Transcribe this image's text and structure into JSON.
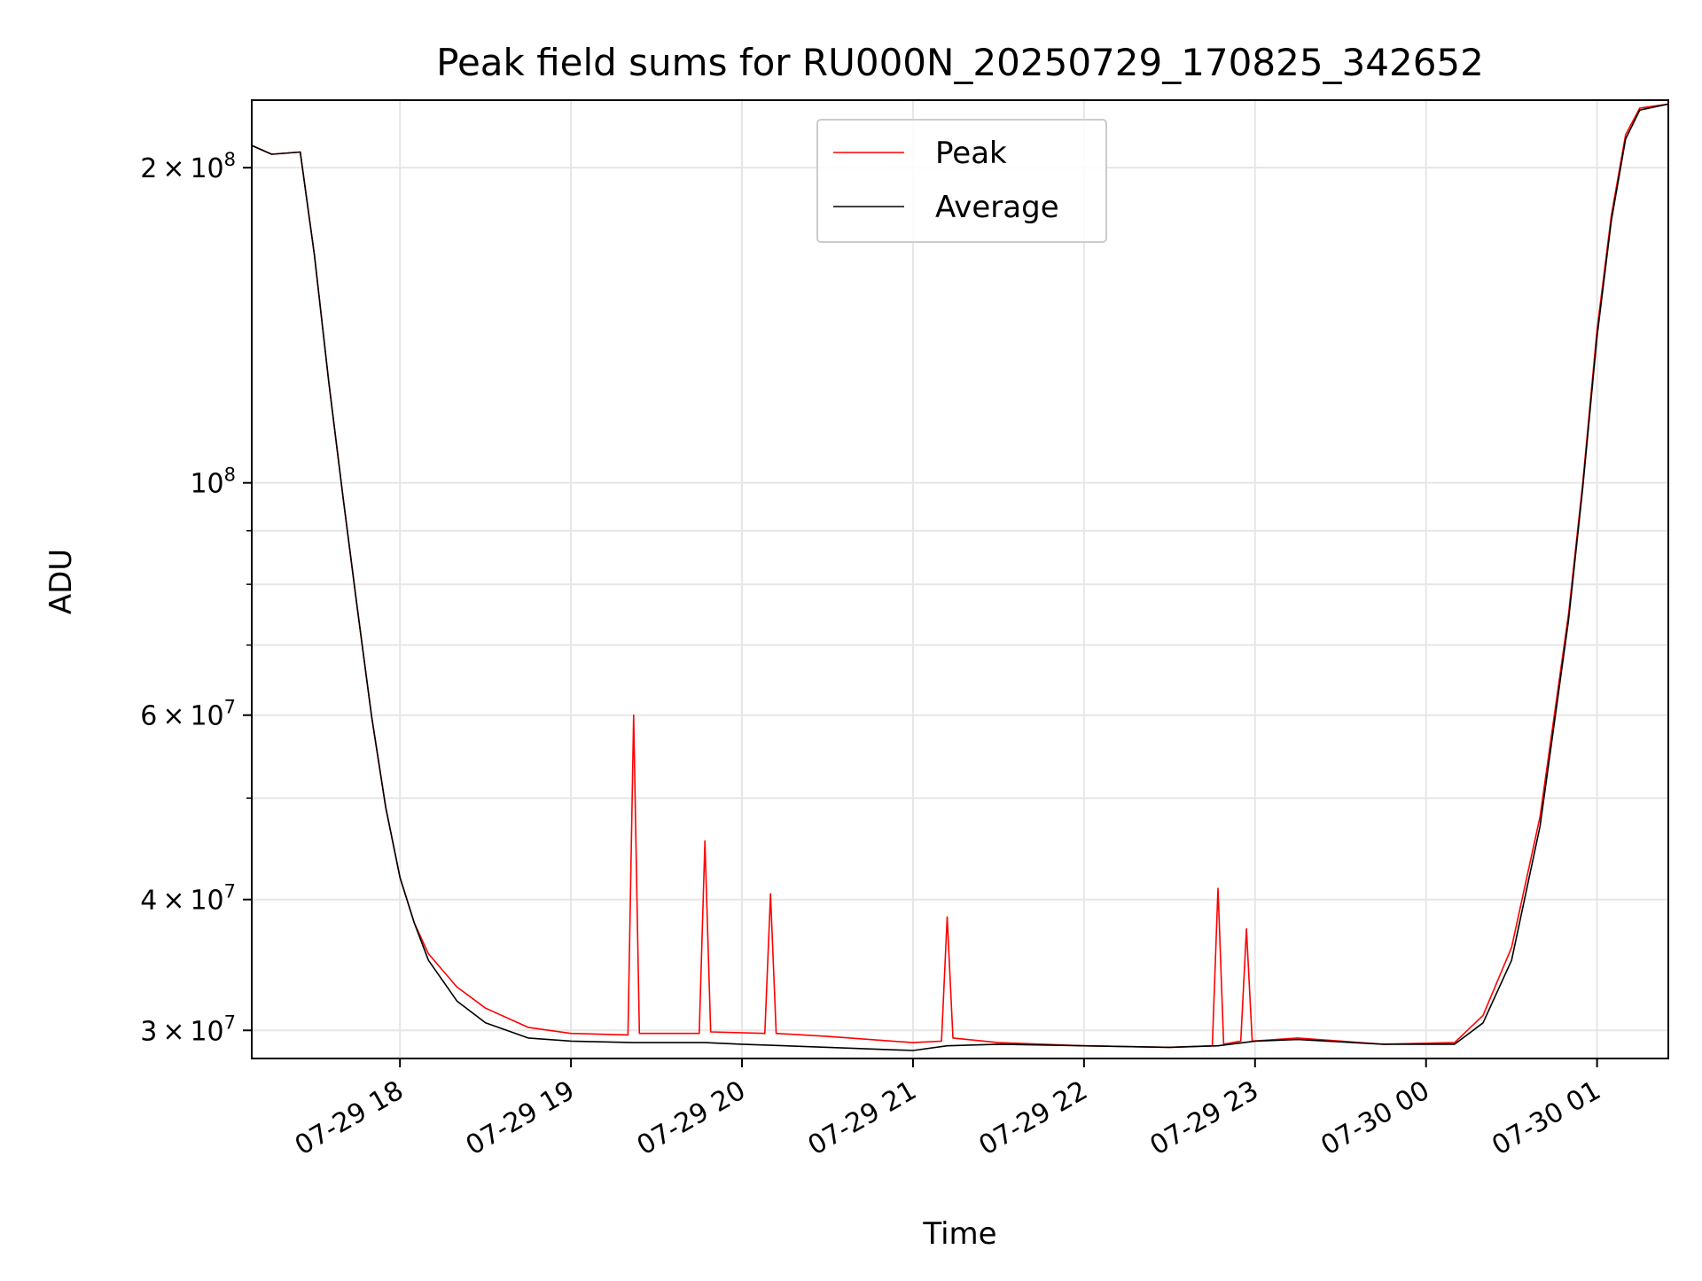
{
  "chart_data": {
    "type": "line",
    "title": "Peak field sums for RU000N_20250729_170825_342652",
    "xlabel": "Time",
    "ylabel": "ADU",
    "yscale": "log",
    "grid": true,
    "legend_position": "upper center",
    "xlim": [
      "2025-07-29 17:08",
      "2025-07-30 01:25"
    ],
    "ylim": [
      28200000,
      232000000
    ],
    "x_ticks": [
      "07-29 18",
      "07-29 19",
      "07-29 20",
      "07-29 21",
      "07-29 22",
      "07-29 23",
      "07-30 00",
      "07-30 01"
    ],
    "y_ticks_major": [
      {
        "value": 30000000,
        "label": "3 × 10^7",
        "mant": "3",
        "exp": "7"
      },
      {
        "value": 40000000,
        "label": "4 × 10^7",
        "mant": "4",
        "exp": "7"
      },
      {
        "value": 60000000,
        "label": "6 × 10^7",
        "mant": "6",
        "exp": "7"
      },
      {
        "value": 100000000,
        "label": "10^8",
        "mant": "",
        "exp": "8"
      },
      {
        "value": 200000000,
        "label": "2 × 10^8",
        "mant": "2",
        "exp": "8"
      }
    ],
    "y_ticks_minor": [
      50000000,
      70000000,
      80000000,
      90000000
    ],
    "series": [
      {
        "name": "Peak",
        "color": "#ff0000",
        "x": [
          "2025-07-29 17:08",
          "2025-07-29 17:15",
          "2025-07-29 17:25",
          "2025-07-29 17:30",
          "2025-07-29 17:35",
          "2025-07-29 17:40",
          "2025-07-29 17:45",
          "2025-07-29 17:50",
          "2025-07-29 17:55",
          "2025-07-29 18:00",
          "2025-07-29 18:05",
          "2025-07-29 18:10",
          "2025-07-29 18:20",
          "2025-07-29 18:30",
          "2025-07-29 18:45",
          "2025-07-29 19:00",
          "2025-07-29 19:20",
          "2025-07-29 19:22",
          "2025-07-29 19:24",
          "2025-07-29 19:45",
          "2025-07-29 19:47",
          "2025-07-29 19:49",
          "2025-07-29 20:08",
          "2025-07-29 20:10",
          "2025-07-29 20:12",
          "2025-07-29 20:30",
          "2025-07-29 21:00",
          "2025-07-29 21:10",
          "2025-07-29 21:12",
          "2025-07-29 21:14",
          "2025-07-29 21:30",
          "2025-07-29 22:00",
          "2025-07-29 22:30",
          "2025-07-29 22:45",
          "2025-07-29 22:47",
          "2025-07-29 22:49",
          "2025-07-29 22:55",
          "2025-07-29 22:57",
          "2025-07-29 22:59",
          "2025-07-29 23:15",
          "2025-07-29 23:45",
          "2025-07-30 00:10",
          "2025-07-30 00:20",
          "2025-07-30 00:30",
          "2025-07-30 00:40",
          "2025-07-30 00:50",
          "2025-07-30 00:55",
          "2025-07-30 01:00",
          "2025-07-30 01:05",
          "2025-07-30 01:10",
          "2025-07-30 01:15",
          "2025-07-30 01:25"
        ],
        "y": [
          210000000,
          206000000,
          207000000,
          165000000,
          125000000,
          97000000,
          76000000,
          60000000,
          49000000,
          42000000,
          38000000,
          35500000,
          33000000,
          31500000,
          30200000,
          29800000,
          29700000,
          60000000,
          29800000,
          29800000,
          45500000,
          29900000,
          29800000,
          40500000,
          29800000,
          29600000,
          29200000,
          29300000,
          38500000,
          29500000,
          29200000,
          29000000,
          28900000,
          29000000,
          41000000,
          29100000,
          29300000,
          37500000,
          29300000,
          29500000,
          29100000,
          29200000,
          31000000,
          36000000,
          48000000,
          75000000,
          100000000,
          140000000,
          180000000,
          215000000,
          228000000,
          230000000
        ]
      },
      {
        "name": "Average",
        "color": "#000000",
        "x": [
          "2025-07-29 17:08",
          "2025-07-29 17:15",
          "2025-07-29 17:25",
          "2025-07-29 17:30",
          "2025-07-29 17:35",
          "2025-07-29 17:40",
          "2025-07-29 17:45",
          "2025-07-29 17:50",
          "2025-07-29 17:55",
          "2025-07-29 18:00",
          "2025-07-29 18:05",
          "2025-07-29 18:10",
          "2025-07-29 18:20",
          "2025-07-29 18:30",
          "2025-07-29 18:45",
          "2025-07-29 19:00",
          "2025-07-29 19:22",
          "2025-07-29 19:47",
          "2025-07-29 20:00",
          "2025-07-29 20:30",
          "2025-07-29 21:00",
          "2025-07-29 21:12",
          "2025-07-29 21:30",
          "2025-07-29 22:00",
          "2025-07-29 22:30",
          "2025-07-29 22:47",
          "2025-07-29 23:00",
          "2025-07-29 23:15",
          "2025-07-29 23:45",
          "2025-07-30 00:10",
          "2025-07-30 00:20",
          "2025-07-30 00:30",
          "2025-07-30 00:40",
          "2025-07-30 00:50",
          "2025-07-30 00:55",
          "2025-07-30 01:00",
          "2025-07-30 01:05",
          "2025-07-30 01:10",
          "2025-07-30 01:15",
          "2025-07-30 01:25"
        ],
        "y": [
          210000000,
          206000000,
          207000000,
          165000000,
          125000000,
          97000000,
          76000000,
          60000000,
          49000000,
          42000000,
          38000000,
          35000000,
          32000000,
          30500000,
          29500000,
          29300000,
          29200000,
          29200000,
          29100000,
          28900000,
          28700000,
          29000000,
          29100000,
          29000000,
          28900000,
          29000000,
          29300000,
          29400000,
          29100000,
          29100000,
          30500000,
          35000000,
          47000000,
          74000000,
          99000000,
          138000000,
          178000000,
          213000000,
          227000000,
          230000000
        ]
      }
    ]
  }
}
